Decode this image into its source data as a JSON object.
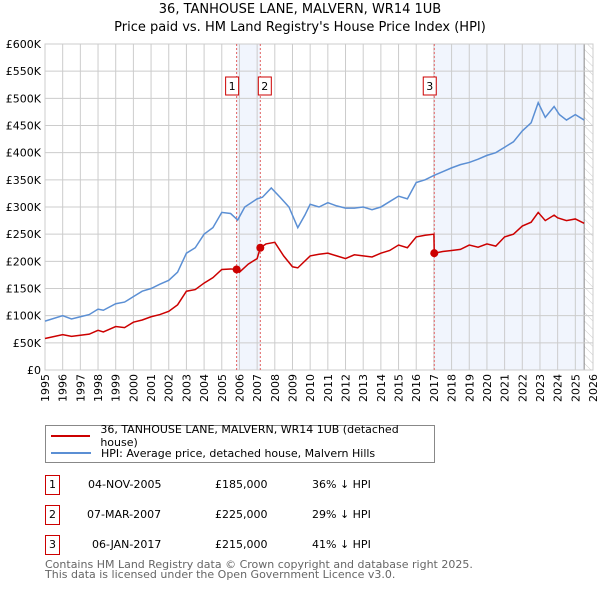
{
  "chart_data": {
    "type": "line",
    "title": "36, TANHOUSE LANE, MALVERN, WR14 1UB",
    "subtitle": "Price paid vs. HM Land Registry's House Price Index (HPI)",
    "xlim": [
      1995,
      2026
    ],
    "ylim": [
      0,
      600000
    ],
    "x_ticks": [
      "1995",
      "1996",
      "1997",
      "1998",
      "1999",
      "2000",
      "2001",
      "2002",
      "2003",
      "2004",
      "2005",
      "2006",
      "2007",
      "2008",
      "2009",
      "2010",
      "2011",
      "2012",
      "2013",
      "2014",
      "2015",
      "2016",
      "2017",
      "2018",
      "2019",
      "2020",
      "2021",
      "2022",
      "2023",
      "2024",
      "2025",
      "2026"
    ],
    "y_ticks": [
      {
        "v": 0,
        "label": "£0"
      },
      {
        "v": 50000,
        "label": "£50K"
      },
      {
        "v": 100000,
        "label": "£100K"
      },
      {
        "v": 150000,
        "label": "£150K"
      },
      {
        "v": 200000,
        "label": "£200K"
      },
      {
        "v": 250000,
        "label": "£250K"
      },
      {
        "v": 300000,
        "label": "£300K"
      },
      {
        "v": 350000,
        "label": "£350K"
      },
      {
        "v": 400000,
        "label": "£400K"
      },
      {
        "v": 450000,
        "label": "£450K"
      },
      {
        "v": 500000,
        "label": "£500K"
      },
      {
        "v": 550000,
        "label": "£550K"
      },
      {
        "v": 600000,
        "label": "£600K"
      }
    ],
    "grid": true,
    "series": [
      {
        "name": "36, TANHOUSE LANE, MALVERN, WR14 1UB (detached house)",
        "color": "#cc0000",
        "x": [
          1995,
          1996,
          1996.5,
          1997,
          1997.5,
          1998,
          1998.3,
          1999,
          1999.5,
          2000,
          2000.5,
          2001,
          2001.5,
          2002,
          2002.5,
          2003,
          2003.5,
          2004,
          2004.5,
          2005,
          2005.5,
          2005.84,
          2006,
          2006.5,
          2007,
          2007.18,
          2007.5,
          2008,
          2008.5,
          2009,
          2009.3,
          2010,
          2010.5,
          2011,
          2011.5,
          2012,
          2012.5,
          2013,
          2013.5,
          2014,
          2014.5,
          2015,
          2015.5,
          2016,
          2016.5,
          2017.0,
          2017.02,
          2017.5,
          2018,
          2018.5,
          2019,
          2019.5,
          2020,
          2020.5,
          2021,
          2021.5,
          2022,
          2022.5,
          2022.9,
          2023.3,
          2023.8,
          2024,
          2024.5,
          2025,
          2025.5
        ],
        "y": [
          58000,
          65000,
          62000,
          64000,
          66000,
          73000,
          70000,
          80000,
          78000,
          88000,
          92000,
          98000,
          102000,
          108000,
          120000,
          145000,
          148000,
          160000,
          170000,
          185000,
          186000,
          185000,
          180000,
          195000,
          205000,
          225000,
          232000,
          235000,
          210000,
          190000,
          188000,
          210000,
          213000,
          215000,
          210000,
          205000,
          212000,
          210000,
          208000,
          215000,
          220000,
          230000,
          225000,
          245000,
          248000,
          250000,
          215000,
          218000,
          220000,
          222000,
          230000,
          226000,
          232000,
          228000,
          245000,
          250000,
          265000,
          272000,
          290000,
          275000,
          285000,
          280000,
          275000,
          278000,
          270000
        ]
      },
      {
        "name": "HPI: Average price, detached house, Malvern Hills",
        "color": "#5b8fd4",
        "x": [
          1995,
          1996,
          1996.5,
          1997,
          1997.5,
          1998,
          1998.3,
          1999,
          1999.5,
          2000,
          2000.5,
          2001,
          2001.5,
          2002,
          2002.5,
          2003,
          2003.5,
          2004,
          2004.5,
          2005,
          2005.5,
          2005.9,
          2006.3,
          2007,
          2007.3,
          2007.8,
          2008.3,
          2008.8,
          2009.3,
          2009.7,
          2010,
          2010.5,
          2011,
          2011.5,
          2012,
          2012.5,
          2013,
          2013.5,
          2014,
          2014.5,
          2015,
          2015.5,
          2016,
          2016.5,
          2017,
          2017.5,
          2018,
          2018.5,
          2019,
          2019.5,
          2020,
          2020.5,
          2021,
          2021.5,
          2022,
          2022.5,
          2022.9,
          2023.3,
          2023.8,
          2024.1,
          2024.5,
          2025,
          2025.5
        ],
        "y": [
          90000,
          100000,
          94000,
          98000,
          102000,
          112000,
          110000,
          122000,
          125000,
          135000,
          145000,
          150000,
          158000,
          165000,
          180000,
          215000,
          225000,
          250000,
          262000,
          290000,
          288000,
          276000,
          300000,
          315000,
          318000,
          335000,
          318000,
          300000,
          262000,
          285000,
          305000,
          300000,
          308000,
          302000,
          298000,
          298000,
          300000,
          295000,
          300000,
          310000,
          320000,
          315000,
          345000,
          350000,
          358000,
          365000,
          372000,
          378000,
          382000,
          388000,
          395000,
          400000,
          410000,
          420000,
          440000,
          455000,
          492000,
          465000,
          485000,
          470000,
          460000,
          470000,
          460000
        ]
      }
    ],
    "sales": [
      {
        "n": "1",
        "x": 2005.84,
        "y": 185000,
        "date": "04-NOV-2005",
        "price": "£185,000",
        "delta": "36% ↓ HPI"
      },
      {
        "n": "2",
        "x": 2007.18,
        "y": 225000,
        "date": "07-MAR-2007",
        "price": "£225,000",
        "delta": "29% ↓ HPI"
      },
      {
        "n": "3",
        "x": 2017.02,
        "y": 215000,
        "date": "06-JAN-2017",
        "price": "£215,000",
        "delta": "41% ↓ HPI"
      }
    ],
    "shaded_ranges": [
      [
        2005.84,
        2007.18
      ],
      [
        2017.02,
        2025.5
      ]
    ],
    "forecast_hatch_from": 2025.5,
    "legend": "below"
  },
  "footer": [
    "Contains HM Land Registry data © Crown copyright and database right 2025.",
    "This data is licensed under the Open Government Licence v3.0."
  ]
}
